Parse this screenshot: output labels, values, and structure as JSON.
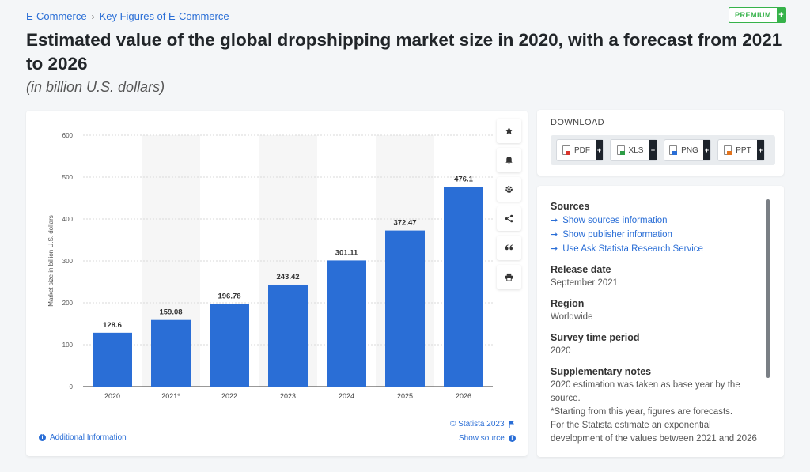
{
  "breadcrumb": {
    "items": [
      "E-Commerce",
      "Key Figures of E-Commerce"
    ],
    "separator": "›"
  },
  "badge": {
    "label": "PREMIUM",
    "plus": "+"
  },
  "title": "Estimated value of the global dropshipping market size in 2020, with a forecast from 2021 to 2026",
  "subtitle": "(in billion U.S. dollars)",
  "toolbar": {
    "icons": [
      "star-icon",
      "bell-icon",
      "gear-icon",
      "share-icon",
      "quote-icon",
      "print-icon"
    ]
  },
  "chart_data": {
    "type": "bar",
    "categories": [
      "2020",
      "2021*",
      "2022",
      "2023",
      "2024",
      "2025",
      "2026"
    ],
    "values": [
      128.6,
      159.08,
      196.78,
      243.42,
      301.11,
      372.47,
      476.1
    ],
    "value_labels": [
      "128.6",
      "159.08",
      "196.78",
      "243.42",
      "301.11",
      "372.47",
      "476.1"
    ],
    "ylabel": "Market size in billion U.S. dollars",
    "xlabel": "",
    "ylim": [
      0,
      600
    ],
    "yticks": [
      0,
      100,
      200,
      300,
      400,
      500,
      600
    ],
    "grid": true,
    "bar_color": "#2a6ed6",
    "alt_band_color": "#f6f6f6"
  },
  "credit": {
    "label": "© Statista 2023"
  },
  "footer": {
    "additional_info": "Additional Information",
    "show_source": "Show source"
  },
  "download": {
    "title": "DOWNLOAD",
    "buttons": [
      {
        "label": "PDF",
        "color": "#d9352b"
      },
      {
        "label": "XLS",
        "color": "#2e9d46"
      },
      {
        "label": "PNG",
        "color": "#2a6ed6"
      },
      {
        "label": "PPT",
        "color": "#e2731d"
      }
    ]
  },
  "meta": {
    "sources_heading": "Sources",
    "sources_links": [
      "Show sources information",
      "Show publisher information",
      "Use Ask Statista Research Service"
    ],
    "release_heading": "Release date",
    "release_value": "September 2021",
    "region_heading": "Region",
    "region_value": "Worldwide",
    "survey_heading": "Survey time period",
    "survey_value": "2020",
    "notes_heading": "Supplementary notes",
    "notes_lines": [
      "2020 estimation was taken as base year by the source.",
      "*Starting from this year, figures are forecasts.",
      "For the Statista estimate an exponential development of the values between 2021 and 2026"
    ]
  }
}
